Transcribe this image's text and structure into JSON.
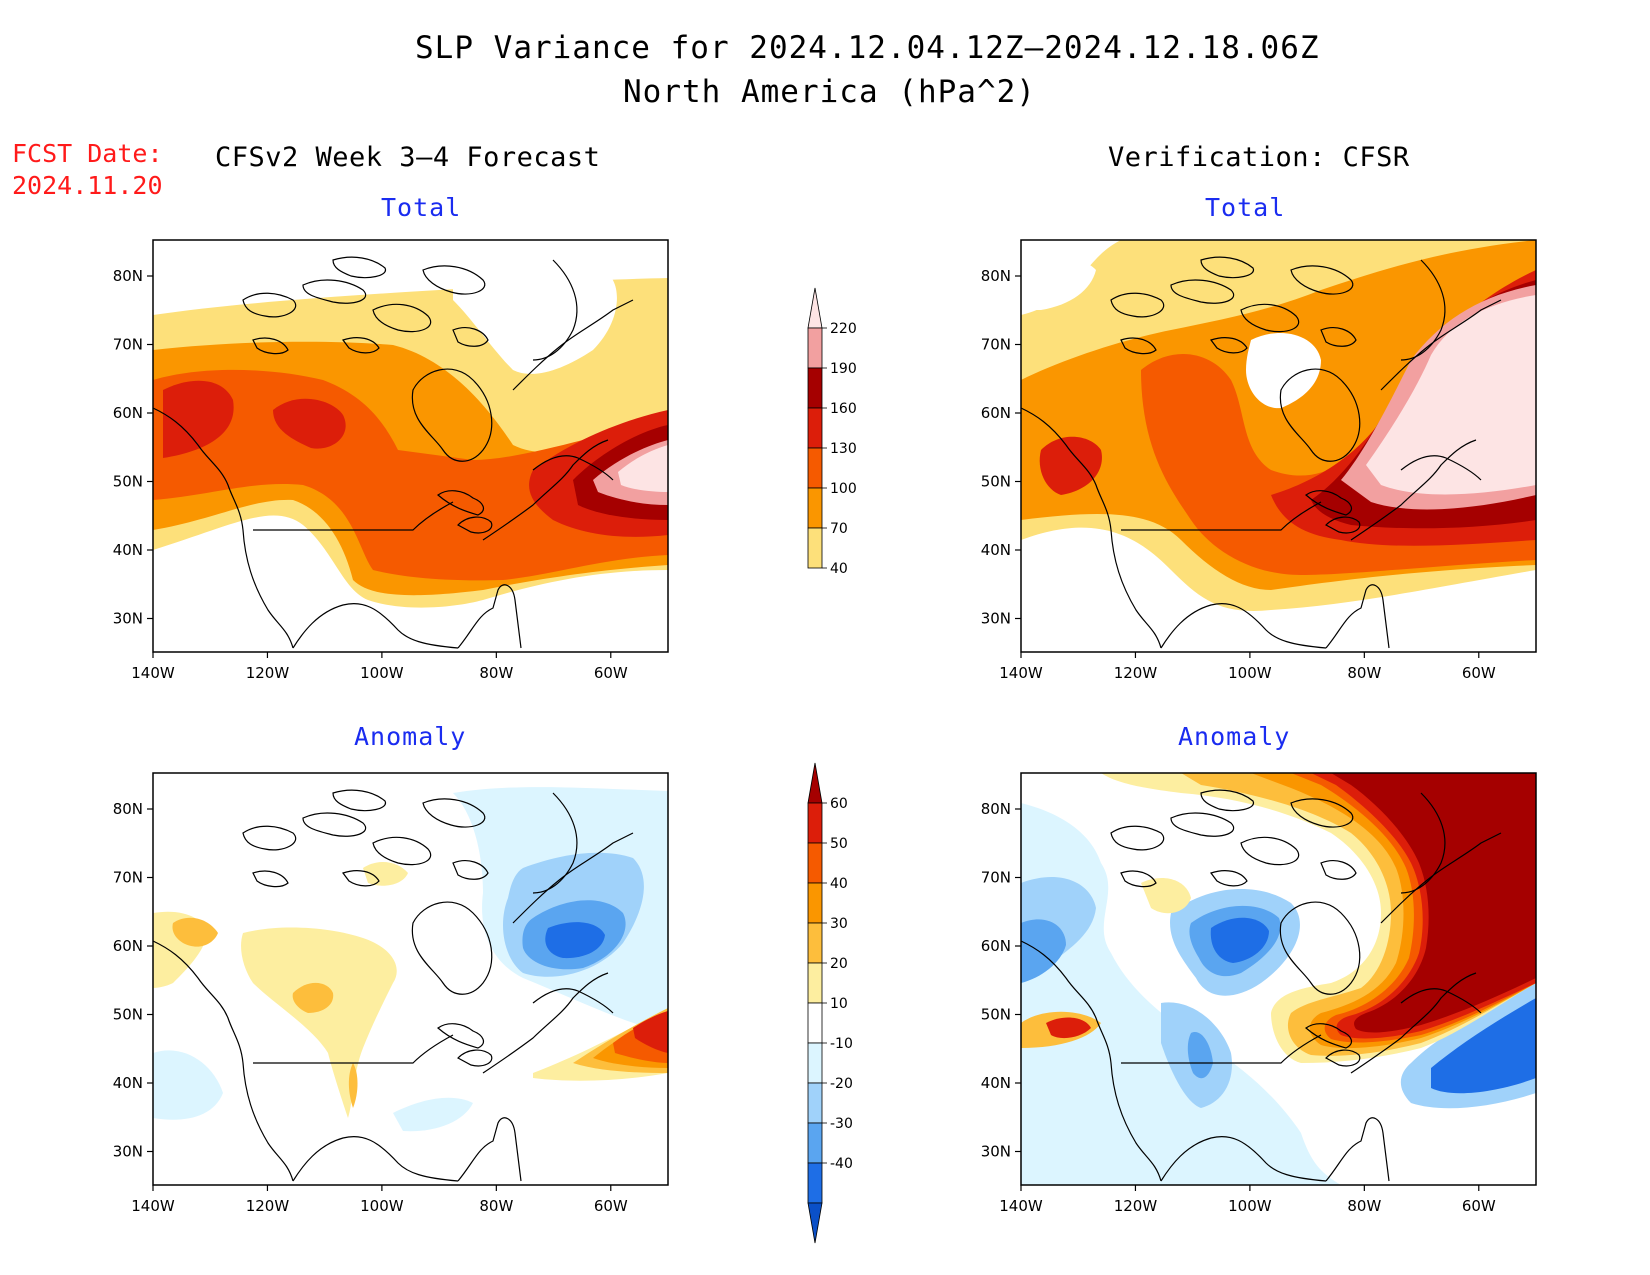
{
  "header": {
    "title_line1": "SLP Variance for 2024.12.04.12Z–2024.12.18.06Z",
    "title_line2": "North America (hPa^2)",
    "fcst_label": "FCST Date:",
    "fcst_date": "2024.11.20",
    "left_column_title": "CFSv2 Week 3–4 Forecast",
    "right_column_title": "Verification: CFSR"
  },
  "panels": {
    "forecast_total": {
      "subtitle": "Total"
    },
    "verification_total": {
      "subtitle": "Total"
    },
    "forecast_anomaly": {
      "subtitle": "Anomaly"
    },
    "verification_anomaly": {
      "subtitle": "Anomaly"
    }
  },
  "axes": {
    "x_ticks": [
      "140W",
      "120W",
      "100W",
      "80W",
      "60W"
    ],
    "y_ticks": [
      "80N",
      "70N",
      "60N",
      "50N",
      "40N",
      "30N"
    ]
  },
  "colorbars": {
    "total": {
      "labels": [
        "220",
        "190",
        "160",
        "130",
        "100",
        "70",
        "40"
      ],
      "colors": [
        "#fde4e4",
        "#f2a0a0",
        "#a50000",
        "#dc1e0a",
        "#f55a00",
        "#fa9600",
        "#fde07a"
      ]
    },
    "anomaly": {
      "labels": [
        "60",
        "50",
        "40",
        "30",
        "20",
        "10",
        "-10",
        "-20",
        "-30",
        "-40"
      ],
      "colors": [
        "#a50000",
        "#dc1e0a",
        "#f55a00",
        "#fa9600",
        "#fdbe3c",
        "#fdeea0",
        "#ffffff",
        "#dcf5ff",
        "#a0d2fa",
        "#5aa5f0",
        "#1e6ee6",
        "#0a50c8"
      ]
    }
  }
}
